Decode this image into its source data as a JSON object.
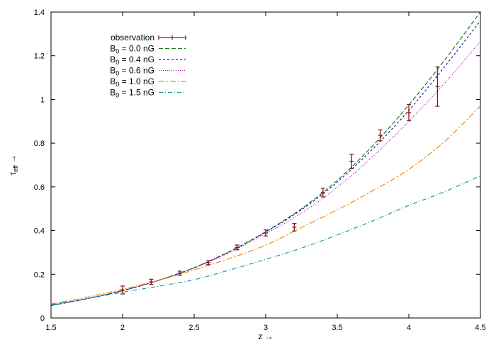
{
  "chart_data": {
    "type": "line",
    "xlabel": "z →",
    "ylabel": "τ",
    "ylabel_sub": "eff",
    "ylabel_arrow": "→",
    "xlim": [
      1.5,
      4.5
    ],
    "ylim": [
      0,
      1.4
    ],
    "x_ticks": [
      "1.5",
      "2",
      "2.5",
      "3",
      "3.5",
      "4",
      "4.5"
    ],
    "y_ticks": [
      "0",
      "0.2",
      "0.4",
      "0.6",
      "0.8",
      "1",
      "1.2",
      "1.4"
    ],
    "grid": false,
    "legend_position": "top-left",
    "observation": {
      "name": "observation",
      "color": "#8b1a1a",
      "points": [
        {
          "x": 2.0,
          "y": 0.128,
          "err": 0.018
        },
        {
          "x": 2.2,
          "y": 0.165,
          "err": 0.012
        },
        {
          "x": 2.4,
          "y": 0.205,
          "err": 0.009
        },
        {
          "x": 2.6,
          "y": 0.253,
          "err": 0.009
        },
        {
          "x": 2.8,
          "y": 0.323,
          "err": 0.011
        },
        {
          "x": 3.0,
          "y": 0.389,
          "err": 0.014
        },
        {
          "x": 3.2,
          "y": 0.415,
          "err": 0.017
        },
        {
          "x": 3.4,
          "y": 0.574,
          "err": 0.02
        },
        {
          "x": 3.6,
          "y": 0.716,
          "err": 0.033
        },
        {
          "x": 3.8,
          "y": 0.836,
          "err": 0.025
        },
        {
          "x": 4.0,
          "y": 0.94,
          "err": 0.037
        },
        {
          "x": 4.2,
          "y": 1.059,
          "err": 0.09
        }
      ]
    },
    "series": [
      {
        "name": "0.0 nG",
        "color": "#1a7a1a",
        "dash": "6,3",
        "x": [
          1.5,
          1.75,
          2.0,
          2.25,
          2.5,
          2.75,
          3.0,
          3.25,
          3.5,
          3.75,
          4.0,
          4.25,
          4.5
        ],
        "y": [
          0.057,
          0.088,
          0.125,
          0.172,
          0.23,
          0.305,
          0.395,
          0.5,
          0.63,
          0.79,
          0.975,
          1.18,
          1.4
        ]
      },
      {
        "name": "0.4 nG",
        "color": "#1a1aa8",
        "dash": "3,3",
        "x": [
          1.5,
          1.75,
          2.0,
          2.25,
          2.5,
          2.75,
          3.0,
          3.25,
          3.5,
          3.75,
          4.0,
          4.25,
          4.5
        ],
        "y": [
          0.057,
          0.088,
          0.125,
          0.172,
          0.23,
          0.304,
          0.393,
          0.495,
          0.622,
          0.775,
          0.95,
          1.15,
          1.36
        ]
      },
      {
        "name": "0.6 nG",
        "color": "#b010b0",
        "dash": "1,2",
        "x": [
          1.5,
          1.75,
          2.0,
          2.25,
          2.5,
          2.75,
          3.0,
          3.25,
          3.5,
          3.75,
          4.0,
          4.25,
          4.5
        ],
        "y": [
          0.058,
          0.089,
          0.126,
          0.172,
          0.229,
          0.3,
          0.385,
          0.48,
          0.598,
          0.74,
          0.9,
          1.075,
          1.265
        ]
      },
      {
        "name": "1.0 nG",
        "color": "#f08c00",
        "dash": "8,3,2,3",
        "x": [
          1.5,
          1.75,
          2.0,
          2.25,
          2.5,
          2.75,
          3.0,
          3.25,
          3.5,
          3.75,
          4.0,
          4.25,
          4.5
        ],
        "y": [
          0.064,
          0.095,
          0.131,
          0.172,
          0.22,
          0.273,
          0.333,
          0.414,
          0.495,
          0.583,
          0.68,
          0.808,
          0.97
        ]
      },
      {
        "name": "1.5 nG",
        "color": "#1a9aa0",
        "dash": "6,3,1,3",
        "x": [
          1.5,
          1.75,
          2.0,
          2.25,
          2.5,
          2.75,
          3.0,
          3.25,
          3.5,
          3.75,
          4.0,
          4.25,
          4.5
        ],
        "y": [
          0.062,
          0.088,
          0.118,
          0.145,
          0.175,
          0.22,
          0.268,
          0.32,
          0.38,
          0.445,
          0.515,
          0.578,
          0.65
        ]
      }
    ],
    "legend": {
      "observation_label": "observation",
      "field_symbol": "B",
      "field_sub": "0",
      "field_eq": " = "
    }
  }
}
